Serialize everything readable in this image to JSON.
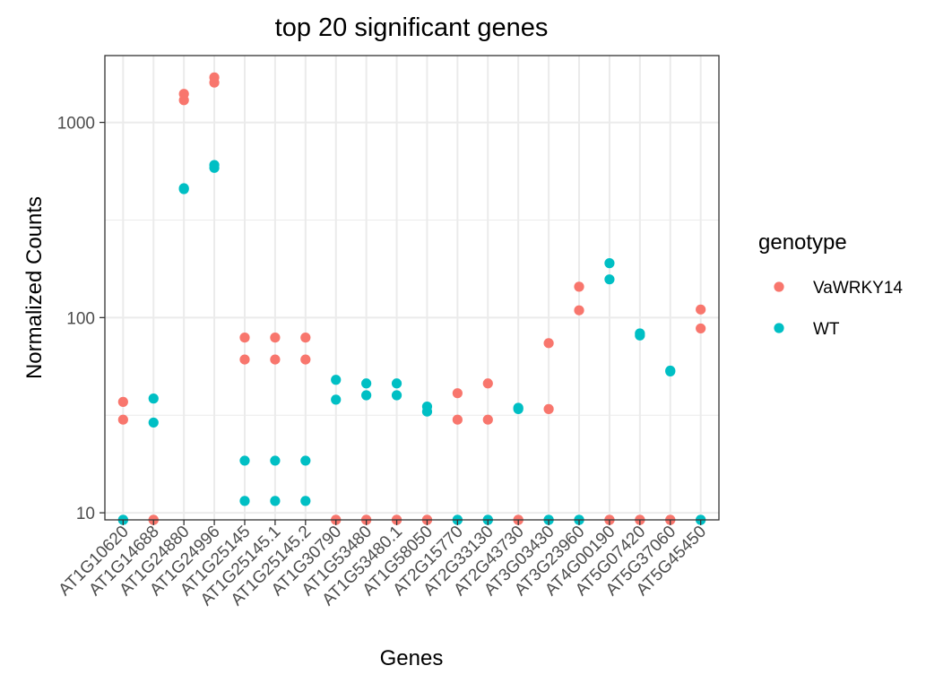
{
  "chart_data": {
    "type": "scatter",
    "title": "top 20 significant genes",
    "xlabel": "Genes",
    "ylabel": "Normalized Counts",
    "y_scale": "log10",
    "ylim": [
      9.2,
      2200
    ],
    "y_ticks": [
      10,
      100,
      1000
    ],
    "y_tick_labels": [
      "10",
      "100",
      "1000"
    ],
    "grid": true,
    "legend": {
      "title": "genotype",
      "placement": "right",
      "entries": [
        {
          "name": "VaWRKY14",
          "color": "#F8766D"
        },
        {
          "name": "WT",
          "color": "#00BFC4"
        }
      ]
    },
    "categories": [
      "AT1G10620",
      "AT1G14688",
      "AT1G24880",
      "AT1G24996",
      "AT1G25145",
      "AT1G25145.1",
      "AT1G25145.2",
      "AT1G30790",
      "AT1G53480",
      "AT1G53480.1",
      "AT1G58050",
      "AT2G15770",
      "AT2G33130",
      "AT2G43730",
      "AT3G03430",
      "AT3G23960",
      "AT4G00190",
      "AT5G07420",
      "AT5G37060",
      "AT5G45450"
    ],
    "series": [
      {
        "name": "VaWRKY14",
        "color": "#F8766D",
        "values": [
          [
            37,
            30
          ],
          [
            9.2,
            9.2
          ],
          [
            1400,
            1300
          ],
          [
            1700,
            1600
          ],
          [
            79,
            61
          ],
          [
            79,
            61
          ],
          [
            79,
            61
          ],
          [
            9.2,
            9.2
          ],
          [
            9.2,
            9.2
          ],
          [
            9.2,
            9.2
          ],
          [
            9.2,
            9.2
          ],
          [
            41,
            30
          ],
          [
            46,
            30
          ],
          [
            9.2,
            9.2
          ],
          [
            74,
            34
          ],
          [
            144,
            109
          ],
          [
            9.2,
            9.2
          ],
          [
            9.2,
            9.2
          ],
          [
            9.2,
            9.2
          ],
          [
            110,
            88
          ]
        ]
      },
      {
        "name": "WT",
        "color": "#00BFC4",
        "values": [
          [
            9.2,
            9.2
          ],
          [
            38.5,
            29
          ],
          [
            460,
            455
          ],
          [
            605,
            585
          ],
          [
            18.5,
            11.5
          ],
          [
            18.5,
            11.5
          ],
          [
            18.5,
            11.5
          ],
          [
            48,
            38
          ],
          [
            46,
            40
          ],
          [
            46,
            40
          ],
          [
            35,
            33
          ],
          [
            9.2,
            9.2
          ],
          [
            9.2,
            9.2
          ],
          [
            34.5,
            34
          ],
          [
            9.2,
            9.2
          ],
          [
            9.2,
            9.2
          ],
          [
            190,
            157
          ],
          [
            83,
            81
          ],
          [
            53,
            53.5
          ],
          [
            9.2,
            9.2
          ]
        ]
      }
    ]
  }
}
